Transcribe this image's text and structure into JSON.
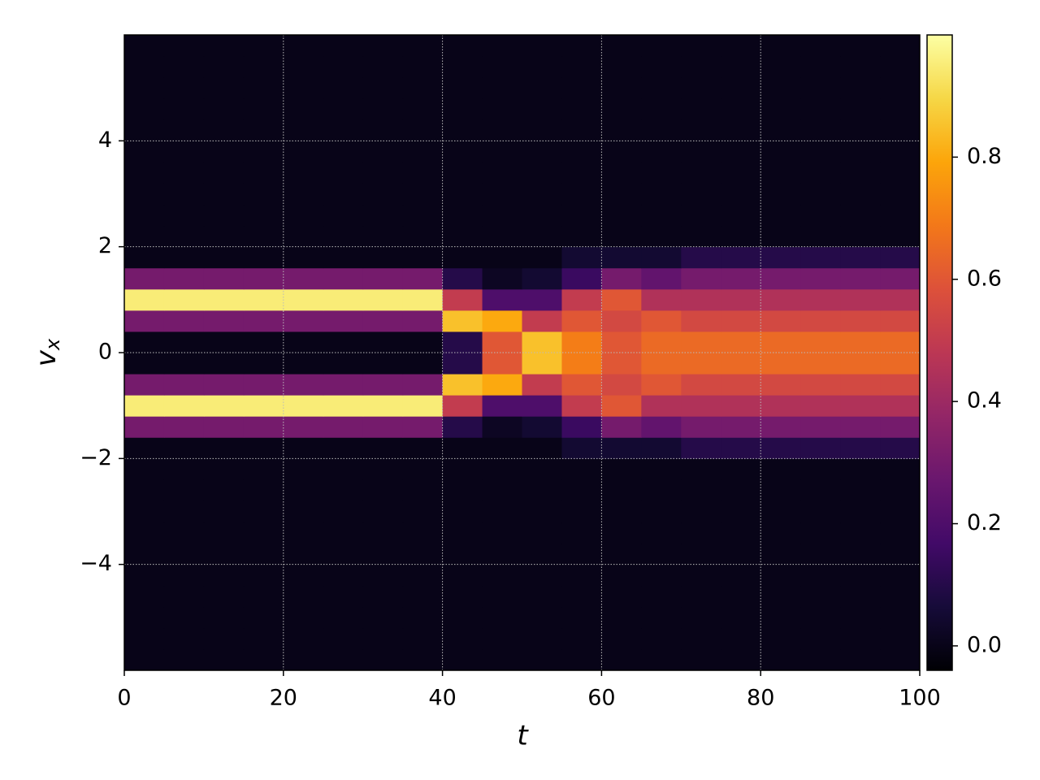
{
  "chart_data": {
    "type": "heatmap",
    "colormap": "inferno",
    "xlabel": "t",
    "ylabel": {
      "text": "v",
      "subscript": "x"
    },
    "xlim": [
      0,
      100
    ],
    "ylim": [
      -6,
      6
    ],
    "xticks": [
      0,
      20,
      40,
      60,
      80,
      100
    ],
    "yticks": [
      {
        "value": -4,
        "label": "−4"
      },
      {
        "value": -2,
        "label": "−2"
      },
      0,
      2,
      4
    ],
    "clim": [
      -0.04,
      1.0
    ],
    "cticks": [
      {
        "value": 0,
        "label": "0.0"
      },
      0.2,
      0.4,
      0.6,
      0.8
    ],
    "grid": true,
    "x_edges": [
      0,
      5,
      10,
      15,
      20,
      25,
      30,
      35,
      40,
      45,
      50,
      55,
      60,
      65,
      70,
      75,
      80,
      85,
      90,
      95,
      100
    ],
    "y_edges": [
      -6,
      -5.6,
      -5.2,
      -4.8,
      -4.4,
      -4,
      -3.6,
      -3.2,
      -2.8,
      -2.4,
      -2,
      -1.6,
      -1.2,
      -0.8,
      -0.4,
      0,
      0.4,
      0.8,
      1.2,
      1.6,
      2,
      2.4,
      2.8,
      3.2,
      3.6,
      4,
      4.4,
      4.8,
      5.2,
      5.6,
      6
    ],
    "z": [
      [
        0,
        0,
        0,
        0,
        0,
        0,
        0,
        0,
        0,
        0,
        0,
        0,
        0,
        0,
        0,
        0,
        0,
        0,
        0,
        0
      ],
      [
        0,
        0,
        0,
        0,
        0,
        0,
        0,
        0,
        0,
        0,
        0,
        0,
        0,
        0,
        0,
        0,
        0,
        0,
        0,
        0
      ],
      [
        0,
        0,
        0,
        0,
        0,
        0,
        0,
        0,
        0,
        0,
        0,
        0,
        0,
        0,
        0,
        0,
        0,
        0,
        0,
        0
      ],
      [
        0,
        0,
        0,
        0,
        0,
        0,
        0,
        0,
        0,
        0,
        0,
        0,
        0,
        0,
        0,
        0,
        0,
        0,
        0,
        0
      ],
      [
        0,
        0,
        0,
        0,
        0,
        0,
        0,
        0,
        0,
        0,
        0,
        0,
        0,
        0,
        0,
        0,
        0,
        0,
        0,
        0
      ],
      [
        0,
        0,
        0,
        0,
        0,
        0,
        0,
        0,
        0,
        0,
        0,
        0,
        0,
        0,
        0,
        0,
        0,
        0,
        0,
        0
      ],
      [
        0,
        0,
        0,
        0,
        0,
        0,
        0,
        0,
        0,
        0,
        0,
        0,
        0,
        0,
        0,
        0,
        0,
        0,
        0,
        0
      ],
      [
        0,
        0,
        0,
        0,
        0,
        0,
        0,
        0,
        0,
        0,
        0,
        0,
        0,
        0,
        0,
        0,
        0,
        0,
        0,
        0
      ],
      [
        0,
        0,
        0,
        0,
        0,
        0,
        0,
        0,
        0,
        0,
        0,
        0,
        0,
        0,
        0,
        0,
        0,
        0,
        0,
        0
      ],
      [
        0,
        0,
        0,
        0,
        0,
        0,
        0,
        0,
        0,
        0,
        0,
        0,
        0,
        0,
        0,
        0,
        0,
        0,
        0,
        0
      ],
      [
        0,
        0,
        0,
        0,
        0,
        0,
        0,
        0,
        0,
        0,
        0,
        0.05,
        0.05,
        0.05,
        0.1,
        0.1,
        0.1,
        0.1,
        0.1,
        0.1
      ],
      [
        0.3,
        0.3,
        0.3,
        0.3,
        0.3,
        0.3,
        0.3,
        0.3,
        0.1,
        0.02,
        0.05,
        0.15,
        0.3,
        0.25,
        0.3,
        0.3,
        0.3,
        0.3,
        0.3,
        0.3
      ],
      [
        0.95,
        0.95,
        0.95,
        0.95,
        0.95,
        0.95,
        0.95,
        0.95,
        0.5,
        0.2,
        0.2,
        0.5,
        0.6,
        0.45,
        0.45,
        0.45,
        0.45,
        0.45,
        0.45,
        0.45
      ],
      [
        0.3,
        0.3,
        0.3,
        0.3,
        0.3,
        0.3,
        0.3,
        0.3,
        0.85,
        0.8,
        0.5,
        0.6,
        0.55,
        0.6,
        0.55,
        0.55,
        0.55,
        0.55,
        0.55,
        0.55
      ],
      [
        0,
        0,
        0,
        0,
        0,
        0,
        0,
        0,
        0.1,
        0.6,
        0.85,
        0.7,
        0.6,
        0.65,
        0.65,
        0.65,
        0.65,
        0.65,
        0.65,
        0.65
      ],
      [
        0,
        0,
        0,
        0,
        0,
        0,
        0,
        0,
        0.1,
        0.6,
        0.85,
        0.7,
        0.6,
        0.65,
        0.65,
        0.65,
        0.65,
        0.65,
        0.65,
        0.65
      ],
      [
        0.3,
        0.3,
        0.3,
        0.3,
        0.3,
        0.3,
        0.3,
        0.3,
        0.85,
        0.8,
        0.5,
        0.6,
        0.55,
        0.6,
        0.55,
        0.55,
        0.55,
        0.55,
        0.55,
        0.55
      ],
      [
        0.95,
        0.95,
        0.95,
        0.95,
        0.95,
        0.95,
        0.95,
        0.95,
        0.5,
        0.2,
        0.2,
        0.5,
        0.6,
        0.45,
        0.45,
        0.45,
        0.45,
        0.45,
        0.45,
        0.45
      ],
      [
        0.3,
        0.3,
        0.3,
        0.3,
        0.3,
        0.3,
        0.3,
        0.3,
        0.1,
        0.02,
        0.05,
        0.15,
        0.3,
        0.25,
        0.3,
        0.3,
        0.3,
        0.3,
        0.3,
        0.3
      ],
      [
        0,
        0,
        0,
        0,
        0,
        0,
        0,
        0,
        0,
        0,
        0,
        0.05,
        0.05,
        0.05,
        0.1,
        0.1,
        0.1,
        0.1,
        0.1,
        0.1
      ],
      [
        0,
        0,
        0,
        0,
        0,
        0,
        0,
        0,
        0,
        0,
        0,
        0,
        0,
        0,
        0,
        0,
        0,
        0,
        0,
        0
      ],
      [
        0,
        0,
        0,
        0,
        0,
        0,
        0,
        0,
        0,
        0,
        0,
        0,
        0,
        0,
        0,
        0,
        0,
        0,
        0,
        0
      ],
      [
        0,
        0,
        0,
        0,
        0,
        0,
        0,
        0,
        0,
        0,
        0,
        0,
        0,
        0,
        0,
        0,
        0,
        0,
        0,
        0
      ],
      [
        0,
        0,
        0,
        0,
        0,
        0,
        0,
        0,
        0,
        0,
        0,
        0,
        0,
        0,
        0,
        0,
        0,
        0,
        0,
        0
      ],
      [
        0,
        0,
        0,
        0,
        0,
        0,
        0,
        0,
        0,
        0,
        0,
        0,
        0,
        0,
        0,
        0,
        0,
        0,
        0,
        0
      ],
      [
        0,
        0,
        0,
        0,
        0,
        0,
        0,
        0,
        0,
        0,
        0,
        0,
        0,
        0,
        0,
        0,
        0,
        0,
        0,
        0
      ],
      [
        0,
        0,
        0,
        0,
        0,
        0,
        0,
        0,
        0,
        0,
        0,
        0,
        0,
        0,
        0,
        0,
        0,
        0,
        0,
        0
      ],
      [
        0,
        0,
        0,
        0,
        0,
        0,
        0,
        0,
        0,
        0,
        0,
        0,
        0,
        0,
        0,
        0,
        0,
        0,
        0,
        0
      ],
      [
        0,
        0,
        0,
        0,
        0,
        0,
        0,
        0,
        0,
        0,
        0,
        0,
        0,
        0,
        0,
        0,
        0,
        0,
        0,
        0
      ],
      [
        0,
        0,
        0,
        0,
        0,
        0,
        0,
        0,
        0,
        0,
        0,
        0,
        0,
        0,
        0,
        0,
        0,
        0,
        0,
        0
      ]
    ]
  }
}
